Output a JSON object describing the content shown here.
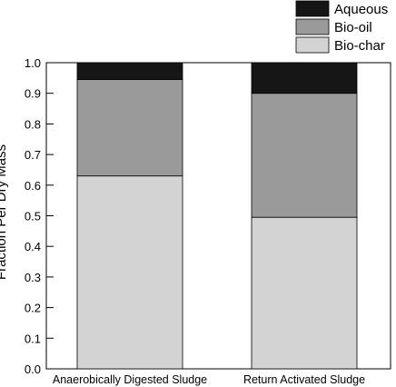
{
  "chart_data": {
    "type": "bar",
    "stacked": true,
    "title": "",
    "xlabel": "",
    "ylabel": "Fraction Per Dry Mass",
    "ylim": [
      0,
      1.0
    ],
    "yticks": [
      "0.0",
      "0.1",
      "0.2",
      "0.3",
      "0.4",
      "0.5",
      "0.6",
      "0.7",
      "0.8",
      "0.9",
      "1.0"
    ],
    "categories": [
      "Anaerobically Digested Sludge",
      "Return Activated Sludge"
    ],
    "series": [
      {
        "name": "Bio-char",
        "values": [
          0.63,
          0.495
        ],
        "color": "#d3d3d3"
      },
      {
        "name": "Bio-oil",
        "values": [
          0.315,
          0.405
        ],
        "color": "#9a9a9a"
      },
      {
        "name": "Aqueous",
        "values": [
          0.055,
          0.1
        ],
        "color": "#161616"
      }
    ],
    "legend": {
      "placement": "top-right",
      "order": [
        "Aqueous",
        "Bio-oil",
        "Bio-char"
      ]
    },
    "grid": false
  }
}
